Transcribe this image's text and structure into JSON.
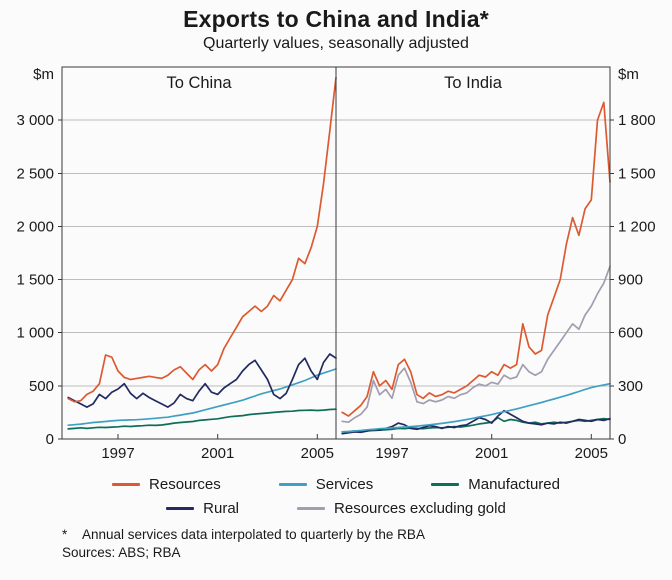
{
  "page": {
    "title": "Exports to China and India*",
    "subtitle": "Quarterly values, seasonally adjusted",
    "footnote_marker": "*",
    "footnote_text": "Annual services data interpolated to quarterly by the RBA",
    "sources": "Sources: ABS; RBA"
  },
  "chart_data": {
    "type": "line",
    "title": "Exports to China and India*",
    "subtitle": "Quarterly values, seasonally adjusted",
    "unit_left": "$m",
    "unit_right": "$m",
    "grid": true,
    "x_start": 1995.0,
    "x_step": 0.25,
    "x_range": [
      1994.75,
      2005.75
    ],
    "x_ticks": [
      1997,
      2001,
      2005
    ],
    "panels": [
      {
        "title": "To China",
        "axis": "left",
        "ylim": [
          0,
          3500
        ],
        "yticks": [
          0,
          500,
          1000,
          1500,
          2000,
          2500,
          3000
        ],
        "ytick_labels": [
          "0",
          "500",
          "1 000",
          "1 500",
          "2 000",
          "2 500",
          "3 000"
        ],
        "series": [
          {
            "name": "Manufactured",
            "color": "#0f6e59",
            "values": [
              95,
              100,
              105,
              100,
              105,
              110,
              108,
              112,
              115,
              120,
              118,
              122,
              125,
              130,
              128,
              132,
              140,
              150,
              155,
              160,
              165,
              175,
              180,
              185,
              190,
              200,
              210,
              215,
              220,
              230,
              235,
              240,
              245,
              250,
              255,
              260,
              262,
              268,
              270,
              272,
              268,
              272,
              278,
              280
            ]
          },
          {
            "name": "Services",
            "color": "#3fa0c4",
            "values": [
              130,
              135,
              140,
              148,
              155,
              160,
              165,
              170,
              175,
              178,
              180,
              182,
              185,
              190,
              195,
              200,
              205,
              215,
              225,
              235,
              245,
              260,
              275,
              290,
              305,
              320,
              335,
              350,
              365,
              385,
              405,
              425,
              440,
              455,
              470,
              490,
              510,
              530,
              550,
              575,
              600,
              620,
              640,
              660
            ]
          },
          {
            "name": "Rural",
            "color": "#232a60",
            "values": [
              390,
              360,
              330,
              300,
              330,
              420,
              380,
              440,
              470,
              520,
              430,
              380,
              430,
              390,
              360,
              330,
              300,
              340,
              420,
              380,
              360,
              450,
              520,
              440,
              420,
              480,
              520,
              560,
              640,
              700,
              740,
              650,
              560,
              420,
              380,
              430,
              560,
              700,
              760,
              640,
              560,
              720,
              800,
              760
            ]
          },
          {
            "name": "Resources",
            "color": "#dc5a31",
            "values": [
              380,
              350,
              360,
              420,
              450,
              520,
              790,
              770,
              640,
              580,
              560,
              570,
              580,
              590,
              580,
              570,
              600,
              650,
              680,
              620,
              560,
              650,
              700,
              640,
              700,
              850,
              950,
              1050,
              1150,
              1200,
              1250,
              1200,
              1250,
              1350,
              1300,
              1400,
              1500,
              1700,
              1650,
              1800,
              2000,
              2400,
              2900,
              3400
            ]
          }
        ]
      },
      {
        "title": "To India",
        "axis": "right",
        "ylim": [
          0,
          2100
        ],
        "yticks": [
          0,
          300,
          600,
          900,
          1200,
          1500,
          1800
        ],
        "ytick_labels": [
          "0",
          "300",
          "600",
          "900",
          "1 200",
          "1 500",
          "1 800"
        ],
        "series": [
          {
            "name": "Manufactured",
            "color": "#0f6e59",
            "values": [
              40,
              42,
              45,
              43,
              46,
              48,
              50,
              52,
              55,
              60,
              58,
              62,
              60,
              58,
              62,
              65,
              63,
              66,
              70,
              68,
              72,
              78,
              85,
              90,
              95,
              120,
              100,
              110,
              105,
              95,
              90,
              95,
              85,
              90,
              95,
              90,
              95,
              100,
              105,
              100,
              105,
              110,
              115,
              110
            ]
          },
          {
            "name": "Rural",
            "color": "#232a60",
            "values": [
              30,
              35,
              40,
              38,
              45,
              55,
              50,
              60,
              70,
              90,
              80,
              60,
              55,
              65,
              75,
              70,
              60,
              70,
              65,
              75,
              80,
              100,
              120,
              110,
              90,
              130,
              160,
              140,
              120,
              100,
              90,
              85,
              80,
              90,
              85,
              95,
              90,
              100,
              110,
              105,
              100,
              110,
              105,
              115
            ]
          },
          {
            "name": "Services",
            "color": "#3fa0c4",
            "values": [
              40,
              42,
              45,
              48,
              52,
              55,
              58,
              60,
              63,
              65,
              68,
              70,
              73,
              76,
              80,
              84,
              88,
              93,
              98,
              104,
              110,
              117,
              124,
              131,
              138,
              146,
              154,
              162,
              170,
              179,
              188,
              197,
              206,
              216,
              226,
              236,
              246,
              257,
              268,
              280,
              290,
              298,
              305,
              312
            ]
          },
          {
            "name": "Resources excluding gold",
            "color": "#a29daf",
            "values": [
              100,
              95,
              120,
              140,
              180,
              330,
              250,
              280,
              230,
              360,
              400,
              320,
              210,
              200,
              220,
              210,
              220,
              240,
              230,
              250,
              260,
              290,
              310,
              300,
              320,
              310,
              360,
              340,
              350,
              420,
              380,
              360,
              380,
              450,
              500,
              550,
              600,
              650,
              620,
              700,
              750,
              820,
              880,
              975
            ]
          },
          {
            "name": "Resources",
            "color": "#dc5a31",
            "values": [
              150,
              130,
              160,
              190,
              240,
              380,
              300,
              330,
              280,
              420,
              450,
              380,
              250,
              230,
              260,
              240,
              250,
              270,
              260,
              280,
              300,
              330,
              360,
              350,
              380,
              360,
              420,
              400,
              420,
              650,
              520,
              480,
              500,
              700,
              800,
              900,
              1100,
              1250,
              1150,
              1300,
              1350,
              1800,
              1900,
              1450
            ]
          }
        ]
      }
    ],
    "legend_rows": [
      [
        {
          "label": "Resources",
          "color": "#dc5a31"
        },
        {
          "label": "Services",
          "color": "#3fa0c4"
        },
        {
          "label": "Manufactured",
          "color": "#0f6e59"
        }
      ],
      [
        {
          "label": "Rural",
          "color": "#232a60"
        },
        {
          "label": "Resources excluding gold",
          "color": "#a29daf"
        }
      ]
    ]
  }
}
